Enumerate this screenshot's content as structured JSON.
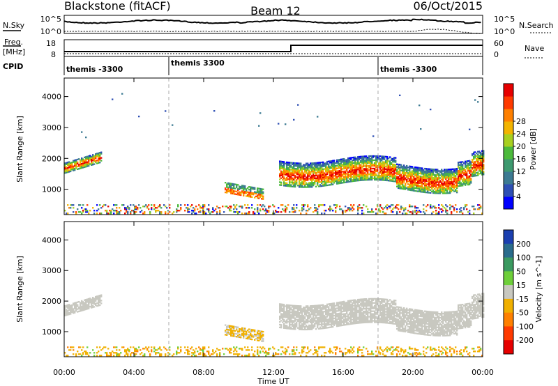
{
  "header": {
    "title_left": "Blackstone (fitACF)",
    "title_center": "Beam 12",
    "title_right": "06/Oct/2015"
  },
  "top_panels": {
    "nsky_label": "N.Sky",
    "nsky_ticks": [
      "10^5",
      "10^0"
    ],
    "nsearch_label": "N.Search",
    "nsearch_ticks": [
      "10^5",
      "10^0"
    ],
    "freq_label": "Freq.",
    "freq_unit": "[MHz]",
    "freq_ticks": [
      "18",
      "8"
    ],
    "nave_label": "Nave",
    "nave_ticks": [
      "60",
      "0"
    ],
    "cpid_label": "CPID",
    "cpid_segments": [
      {
        "start_h": 0,
        "label": "themis -3300"
      },
      {
        "start_h": 6,
        "label": "themis 3300"
      },
      {
        "start_h": 18,
        "label": "themis -3300"
      }
    ]
  },
  "chart_data": [
    {
      "type": "heatmap",
      "name": "power",
      "ylabel": "Slant Range [km]",
      "ylim": [
        180,
        4600
      ],
      "yticks": [
        1000,
        2000,
        3000,
        4000
      ],
      "xlim": [
        0,
        24
      ],
      "colorbar_label": "Power [dB]",
      "colorbar_ticks": [
        "4",
        "8",
        "12",
        "16",
        "20",
        "24",
        "28"
      ],
      "colorbar_colors": [
        "#0000ff",
        "#2e4fb4",
        "#3c7a92",
        "#3e9a70",
        "#4cba3c",
        "#a8d020",
        "#f3b400",
        "#ff8000",
        "#ff3a00",
        "#e60000"
      ],
      "features": [
        {
          "t0": 0.0,
          "t1": 2.1,
          "r_center": [
            1650,
            1800,
            1900,
            2050
          ],
          "thickness": 300
        },
        {
          "t0": 12.3,
          "t1": 24.0,
          "r_center": [
            1500,
            1600,
            1450,
            1550,
            1300,
            1700
          ],
          "thickness": 600
        },
        {
          "t0": 9.2,
          "t1": 11.4,
          "r_center": [
            1100,
            900,
            900
          ],
          "thickness": 300
        }
      ]
    },
    {
      "type": "heatmap",
      "name": "velocity",
      "ylabel": "Slant Range [km]",
      "ylim": [
        180,
        4600
      ],
      "yticks": [
        1000,
        2000,
        3000,
        4000
      ],
      "xlim": [
        0,
        24
      ],
      "colorbar_label": "Velocity [m s^-1]",
      "colorbar_ticks": [
        "200",
        "100",
        "50",
        "15",
        "-15",
        "-50",
        "-100",
        "-200"
      ],
      "colorbar_colors": [
        "#1b3fb0",
        "#2a6c8c",
        "#3b9a60",
        "#6ecf3a",
        "#c8c8c0",
        "#f0b000",
        "#ff8000",
        "#ff3a00",
        "#e60000"
      ]
    }
  ],
  "xaxis": {
    "ticks": [
      "00:00",
      "04:00",
      "08:00",
      "12:00",
      "16:00",
      "20:00",
      "00:00"
    ],
    "label": "Time UT"
  }
}
